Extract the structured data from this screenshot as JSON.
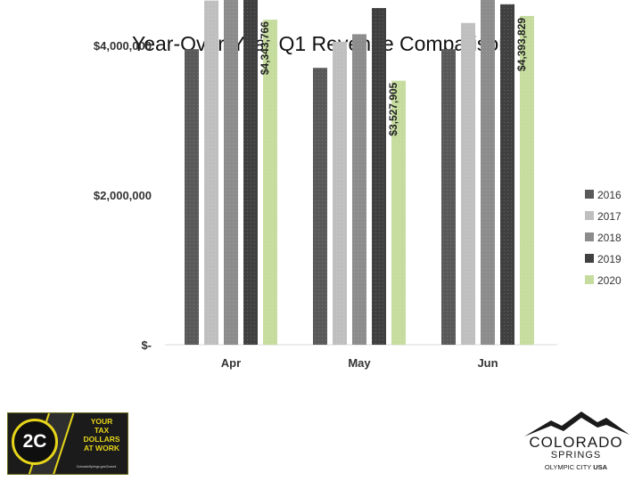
{
  "chart_data": {
    "type": "bar",
    "title": "Year-Over-Year Q1 Revenue Comparison",
    "categories": [
      "Apr",
      "May",
      "Jun"
    ],
    "series": [
      {
        "name": "2016",
        "values": [
          3950000,
          3700000,
          3950000
        ]
      },
      {
        "name": "2017",
        "values": [
          4600000,
          4050000,
          4300000
        ]
      },
      {
        "name": "2018",
        "values": [
          4800000,
          4150000,
          4620000
        ]
      },
      {
        "name": "2019",
        "values": [
          5050000,
          4500000,
          4550000
        ]
      },
      {
        "name": "2020",
        "values": [
          4343766,
          3527905,
          4393829
        ]
      }
    ],
    "data_labels": [
      {
        "series": "2020",
        "category": "Apr",
        "text": "$4,343,766"
      },
      {
        "series": "2020",
        "category": "May",
        "text": "$3,527,905"
      },
      {
        "series": "2020",
        "category": "Jun",
        "text": "$4,393,829"
      }
    ],
    "ylim": [
      0,
      5200000
    ],
    "yticks": [
      {
        "value": 0,
        "label": "$-"
      },
      {
        "value": 2000000,
        "label": "$2,000,000"
      },
      {
        "value": 4000000,
        "label": "$4,000,000"
      }
    ],
    "xlabel": "",
    "ylabel": "",
    "grid": false,
    "legend": "right",
    "colors": {
      "2016": "#595959",
      "2017": "#bfbfbf",
      "2018": "#8c8c8c",
      "2019": "#404040",
      "2020": "#c5dc9e"
    }
  },
  "logos": {
    "left": {
      "badge": "2C",
      "words": [
        "YOUR",
        "TAX",
        "DOLLARS",
        "AT WORK"
      ],
      "small_text": "ColoradoSprings.gov/2cwork"
    },
    "right": {
      "line1": "COLORADO",
      "line2": "SPRINGS",
      "line3_a": "OLYMPIC CITY",
      "line3_b": "USA"
    }
  }
}
